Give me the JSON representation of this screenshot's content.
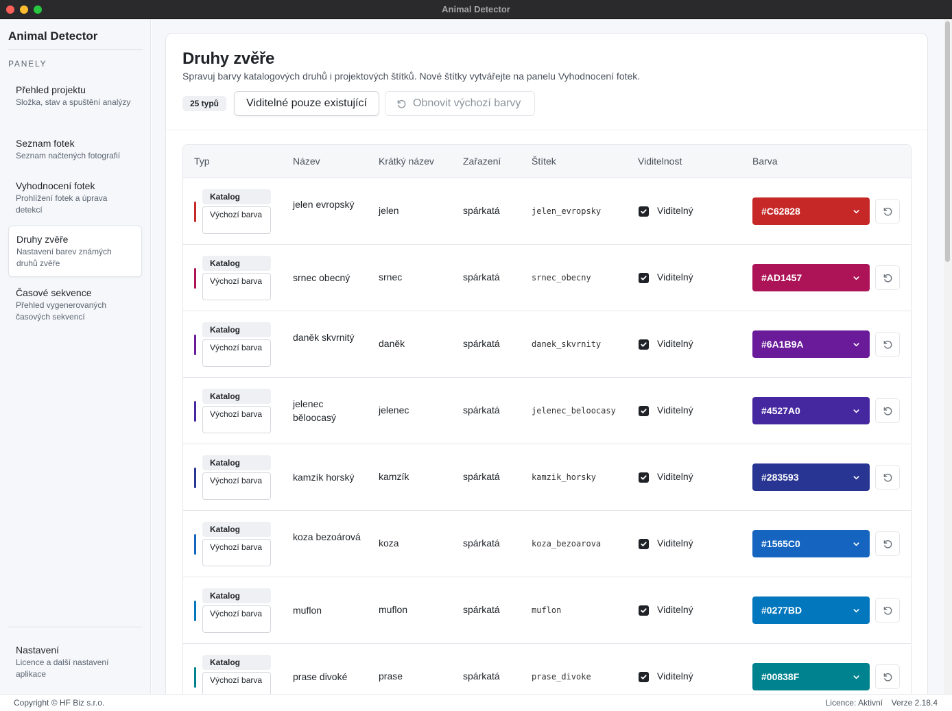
{
  "window": {
    "title": "Animal Detector"
  },
  "sidebar": {
    "app_name": "Animal Detector",
    "section_label": "PANELY",
    "items": [
      {
        "title": "Přehled projektu",
        "subtitle": "Složka, stav a spuštění analýzy"
      },
      {
        "title": "Seznam fotek",
        "subtitle": "Seznam načtených fotografií"
      },
      {
        "title": "Vyhodnocení fotek",
        "subtitle": "Prohlížení fotek a úprava detekcí"
      },
      {
        "title": "Druhy zvěře",
        "subtitle": "Nastavení barev známých druhů zvěře",
        "active": true
      },
      {
        "title": "Časové sekvence",
        "subtitle": "Přehled vygenerovaných časových sekvencí"
      }
    ],
    "settings": {
      "title": "Nastavení",
      "subtitle": "Licence a další nastavení aplikace"
    }
  },
  "footer": {
    "copyright": "Copyright © HF Biz s.r.o.",
    "license": "Licence: Aktivní",
    "version": "Verze 2.18.4"
  },
  "page": {
    "title": "Druhy zvěře",
    "description": "Spravuj barvy katalogových druhů i projektových štítků. Nové štítky vytvářejte na panelu Vyhodnocení fotek.",
    "count_badge": "25 typů",
    "visible_only_button": "Viditelné pouze existující",
    "reset_defaults_button": "Obnovit výchozí barvy"
  },
  "table": {
    "columns": [
      "Typ",
      "Název",
      "Krátký název",
      "Zařazení",
      "Štítek",
      "Viditelnost",
      "Barva"
    ],
    "type_tag": "Katalog",
    "default_tag": "Výchozí barva",
    "rows": [
      {
        "name": "jelen evropský",
        "short": "jelen",
        "classification": "spárkatá",
        "label": "jelen_evropsky",
        "visible": true,
        "visibility": "Viditelný",
        "color": "#C62828"
      },
      {
        "name": "srnec obecný",
        "short": "srnec",
        "classification": "spárkatá",
        "label": "srnec_obecny",
        "visible": true,
        "visibility": "Viditelný",
        "color": "#AD1457"
      },
      {
        "name": "daněk skvrnitý",
        "short": "daněk",
        "classification": "spárkatá",
        "label": "danek_skvrnity",
        "visible": true,
        "visibility": "Viditelný",
        "color": "#6A1B9A"
      },
      {
        "name": "jelenec běloocasý",
        "short": "jelenec",
        "classification": "spárkatá",
        "label": "jelenec_beloocasy",
        "visible": true,
        "visibility": "Viditelný",
        "color": "#4527A0"
      },
      {
        "name": "kamzík horský",
        "short": "kamzík",
        "classification": "spárkatá",
        "label": "kamzik_horsky",
        "visible": true,
        "visibility": "Viditelný",
        "color": "#283593"
      },
      {
        "name": "koza bezoárová",
        "short": "koza",
        "classification": "spárkatá",
        "label": "koza_bezoarova",
        "visible": true,
        "visibility": "Viditelný",
        "color": "#1565C0"
      },
      {
        "name": "muflon",
        "short": "muflon",
        "classification": "spárkatá",
        "label": "muflon",
        "visible": true,
        "visibility": "Viditelný",
        "color": "#0277BD"
      },
      {
        "name": "prase divoké",
        "short": "prase",
        "classification": "spárkatá",
        "label": "prase_divoke",
        "visible": true,
        "visibility": "Viditelný",
        "color": "#00838F"
      }
    ]
  },
  "icons": {
    "reset": "rotate-ccw-icon",
    "dropdown": "chevron-down-icon",
    "check": "check-icon"
  }
}
